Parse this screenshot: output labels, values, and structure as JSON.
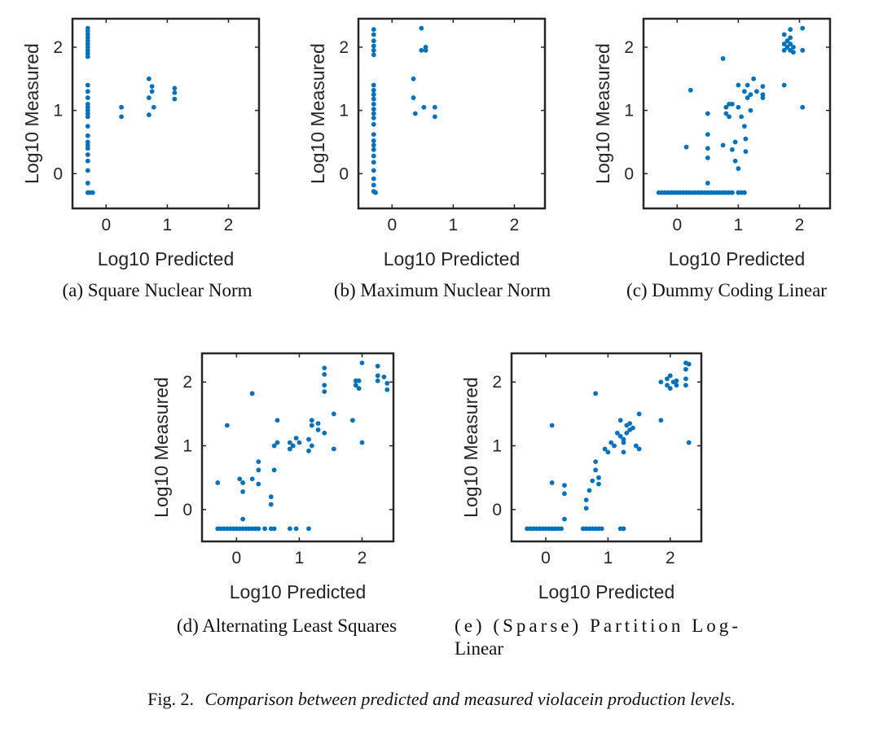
{
  "colors": {
    "marker": "#0072BD",
    "axis": "#262626",
    "text": "#262626"
  },
  "figure_caption": {
    "label": "Fig. 2.",
    "text": "Comparison between predicted and measured violacein production levels."
  },
  "chart_data": [
    {
      "type": "scatter",
      "subcaption": "(a) Square Nuclear Norm",
      "xlabel": "Log10 Predicted",
      "ylabel": "Log10 Measured",
      "xlim": [
        -0.55,
        2.5
      ],
      "ylim": [
        -0.55,
        2.45
      ],
      "xticks": [
        0,
        1,
        2
      ],
      "yticks": [
        0,
        1,
        2
      ],
      "points": [
        [
          -0.3,
          2.3
        ],
        [
          -0.3,
          2.25
        ],
        [
          -0.3,
          2.2
        ],
        [
          -0.3,
          2.15
        ],
        [
          -0.3,
          2.1
        ],
        [
          -0.3,
          2.05
        ],
        [
          -0.3,
          2.0
        ],
        [
          -0.3,
          1.95
        ],
        [
          -0.3,
          1.9
        ],
        [
          -0.3,
          1.85
        ],
        [
          -0.3,
          1.4
        ],
        [
          -0.3,
          1.3
        ],
        [
          -0.3,
          1.2
        ],
        [
          -0.3,
          1.1
        ],
        [
          -0.3,
          1.05
        ],
        [
          -0.3,
          1.0
        ],
        [
          -0.3,
          0.95
        ],
        [
          -0.3,
          0.9
        ],
        [
          -0.3,
          0.75
        ],
        [
          -0.3,
          0.6
        ],
        [
          -0.3,
          0.5
        ],
        [
          -0.3,
          0.45
        ],
        [
          -0.3,
          0.4
        ],
        [
          -0.3,
          0.3
        ],
        [
          -0.3,
          0.2
        ],
        [
          -0.3,
          0.05
        ],
        [
          -0.3,
          -0.15
        ],
        [
          -0.3,
          -0.3
        ],
        [
          -0.27,
          -0.3
        ],
        [
          -0.22,
          -0.3
        ],
        [
          0.25,
          1.05
        ],
        [
          0.25,
          0.9
        ],
        [
          0.7,
          1.5
        ],
        [
          0.7,
          1.2
        ],
        [
          0.7,
          0.93
        ],
        [
          0.75,
          1.38
        ],
        [
          0.75,
          1.3
        ],
        [
          0.78,
          1.05
        ],
        [
          1.12,
          1.35
        ],
        [
          1.12,
          1.28
        ],
        [
          1.12,
          1.18
        ]
      ]
    },
    {
      "type": "scatter",
      "subcaption": "(b) Maximum Nuclear Norm",
      "xlabel": "Log10 Predicted",
      "ylabel": "Log10 Measured",
      "xlim": [
        -0.55,
        2.5
      ],
      "ylim": [
        -0.55,
        2.45
      ],
      "xticks": [
        0,
        1,
        2
      ],
      "yticks": [
        0,
        1,
        2
      ],
      "points": [
        [
          -0.3,
          2.28
        ],
        [
          -0.3,
          2.2
        ],
        [
          -0.3,
          2.1
        ],
        [
          -0.3,
          2.02
        ],
        [
          -0.3,
          1.95
        ],
        [
          -0.3,
          1.88
        ],
        [
          -0.3,
          1.4
        ],
        [
          -0.3,
          1.32
        ],
        [
          -0.3,
          1.25
        ],
        [
          -0.3,
          1.18
        ],
        [
          -0.3,
          1.1
        ],
        [
          -0.3,
          1.02
        ],
        [
          -0.3,
          0.95
        ],
        [
          -0.3,
          0.88
        ],
        [
          -0.3,
          0.78
        ],
        [
          -0.3,
          0.62
        ],
        [
          -0.3,
          0.52
        ],
        [
          -0.3,
          0.45
        ],
        [
          -0.3,
          0.38
        ],
        [
          -0.3,
          0.28
        ],
        [
          -0.3,
          0.18
        ],
        [
          -0.3,
          0.05
        ],
        [
          -0.3,
          -0.08
        ],
        [
          -0.3,
          -0.18
        ],
        [
          -0.3,
          -0.28
        ],
        [
          -0.27,
          -0.3
        ],
        [
          0.35,
          1.5
        ],
        [
          0.35,
          1.2
        ],
        [
          0.38,
          0.95
        ],
        [
          0.48,
          2.3
        ],
        [
          0.48,
          1.95
        ],
        [
          0.52,
          1.05
        ],
        [
          0.55,
          1.95
        ],
        [
          0.55,
          2.0
        ],
        [
          0.7,
          1.05
        ],
        [
          0.7,
          0.9
        ]
      ]
    },
    {
      "type": "scatter",
      "subcaption": "(c) Dummy Coding Linear",
      "xlabel": "Log10 Predicted",
      "ylabel": "Log10 Measured",
      "xlim": [
        -0.55,
        2.5
      ],
      "ylim": [
        -0.55,
        2.45
      ],
      "xticks": [
        0,
        1,
        2
      ],
      "yticks": [
        0,
        1,
        2
      ],
      "points": [
        [
          -0.3,
          -0.3
        ],
        [
          -0.25,
          -0.3
        ],
        [
          -0.2,
          -0.3
        ],
        [
          -0.15,
          -0.3
        ],
        [
          -0.1,
          -0.3
        ],
        [
          -0.05,
          -0.3
        ],
        [
          0.0,
          -0.3
        ],
        [
          0.05,
          -0.3
        ],
        [
          0.1,
          -0.3
        ],
        [
          0.15,
          -0.3
        ],
        [
          0.2,
          -0.3
        ],
        [
          0.25,
          -0.3
        ],
        [
          0.3,
          -0.3
        ],
        [
          0.35,
          -0.3
        ],
        [
          0.4,
          -0.3
        ],
        [
          0.45,
          -0.3
        ],
        [
          0.5,
          -0.3
        ],
        [
          0.55,
          -0.3
        ],
        [
          0.6,
          -0.3
        ],
        [
          0.65,
          -0.3
        ],
        [
          0.7,
          -0.3
        ],
        [
          0.75,
          -0.3
        ],
        [
          0.8,
          -0.3
        ],
        [
          0.85,
          -0.3
        ],
        [
          0.9,
          -0.3
        ],
        [
          1.0,
          -0.3
        ],
        [
          1.05,
          -0.3
        ],
        [
          1.1,
          -0.3
        ],
        [
          0.15,
          0.42
        ],
        [
          0.22,
          1.32
        ],
        [
          0.5,
          0.95
        ],
        [
          0.5,
          0.62
        ],
        [
          0.5,
          0.4
        ],
        [
          0.5,
          0.25
        ],
        [
          0.5,
          -0.15
        ],
        [
          0.75,
          1.82
        ],
        [
          0.75,
          0.45
        ],
        [
          0.8,
          1.05
        ],
        [
          0.8,
          0.95
        ],
        [
          0.85,
          1.1
        ],
        [
          0.85,
          0.9
        ],
        [
          0.9,
          1.1
        ],
        [
          0.9,
          0.38
        ],
        [
          0.95,
          0.5
        ],
        [
          0.95,
          0.2
        ],
        [
          1.0,
          1.4
        ],
        [
          1.0,
          1.05
        ],
        [
          1.0,
          0.08
        ],
        [
          1.05,
          0.9
        ],
        [
          1.1,
          1.3
        ],
        [
          1.1,
          0.75
        ],
        [
          1.12,
          0.55
        ],
        [
          1.12,
          0.35
        ],
        [
          1.15,
          1.4
        ],
        [
          1.15,
          1.2
        ],
        [
          1.2,
          1.0
        ],
        [
          1.2,
          1.25
        ],
        [
          1.25,
          1.5
        ],
        [
          1.3,
          1.3
        ],
        [
          1.4,
          1.38
        ],
        [
          1.4,
          1.25
        ],
        [
          1.4,
          1.2
        ],
        [
          1.75,
          2.2
        ],
        [
          1.75,
          2.05
        ],
        [
          1.75,
          1.95
        ],
        [
          1.75,
          1.4
        ],
        [
          1.8,
          2.1
        ],
        [
          1.8,
          2.0
        ],
        [
          1.85,
          2.28
        ],
        [
          1.85,
          2.15
        ],
        [
          1.85,
          2.05
        ],
        [
          1.85,
          1.95
        ],
        [
          1.9,
          2.0
        ],
        [
          1.9,
          1.92
        ],
        [
          2.05,
          2.3
        ],
        [
          2.05,
          1.95
        ],
        [
          2.05,
          1.05
        ]
      ]
    },
    {
      "type": "scatter",
      "subcaption": "(d) Alternating Least Squares",
      "xlabel": "Log10 Predicted",
      "ylabel": "Log10 Measured",
      "xlim": [
        -0.55,
        2.5
      ],
      "ylim": [
        -0.5,
        2.45
      ],
      "xticks": [
        0,
        1,
        2
      ],
      "yticks": [
        0,
        1,
        2
      ],
      "points": [
        [
          -0.3,
          0.42
        ],
        [
          -0.3,
          -0.3
        ],
        [
          -0.25,
          -0.3
        ],
        [
          -0.2,
          -0.3
        ],
        [
          -0.15,
          -0.3
        ],
        [
          -0.1,
          -0.3
        ],
        [
          -0.05,
          -0.3
        ],
        [
          0.0,
          -0.3
        ],
        [
          0.05,
          -0.3
        ],
        [
          0.1,
          -0.3
        ],
        [
          0.15,
          -0.3
        ],
        [
          0.2,
          -0.3
        ],
        [
          0.25,
          -0.3
        ],
        [
          0.3,
          -0.3
        ],
        [
          0.35,
          -0.3
        ],
        [
          0.45,
          -0.3
        ],
        [
          0.55,
          -0.3
        ],
        [
          0.6,
          -0.3
        ],
        [
          0.85,
          -0.3
        ],
        [
          0.95,
          -0.3
        ],
        [
          1.15,
          -0.3
        ],
        [
          -0.15,
          1.32
        ],
        [
          0.05,
          0.48
        ],
        [
          0.1,
          0.42
        ],
        [
          0.1,
          0.28
        ],
        [
          0.1,
          -0.15
        ],
        [
          0.25,
          1.82
        ],
        [
          0.25,
          0.48
        ],
        [
          0.35,
          0.75
        ],
        [
          0.35,
          0.62
        ],
        [
          0.35,
          0.4
        ],
        [
          0.55,
          0.2
        ],
        [
          0.55,
          0.08
        ],
        [
          0.6,
          0.62
        ],
        [
          0.6,
          1.0
        ],
        [
          0.65,
          1.4
        ],
        [
          0.65,
          1.05
        ],
        [
          0.85,
          1.05
        ],
        [
          0.85,
          0.95
        ],
        [
          0.9,
          1.0
        ],
        [
          0.95,
          1.12
        ],
        [
          1.0,
          1.05
        ],
        [
          1.15,
          1.1
        ],
        [
          1.15,
          0.92
        ],
        [
          1.2,
          1.4
        ],
        [
          1.2,
          1.32
        ],
        [
          1.2,
          1.0
        ],
        [
          1.3,
          1.35
        ],
        [
          1.3,
          1.25
        ],
        [
          1.4,
          2.22
        ],
        [
          1.4,
          2.12
        ],
        [
          1.4,
          1.95
        ],
        [
          1.4,
          1.85
        ],
        [
          1.4,
          1.2
        ],
        [
          1.55,
          1.5
        ],
        [
          1.55,
          0.95
        ],
        [
          1.85,
          1.4
        ],
        [
          1.9,
          2.02
        ],
        [
          1.9,
          1.95
        ],
        [
          1.95,
          1.9
        ],
        [
          1.95,
          2.02
        ],
        [
          2.0,
          2.3
        ],
        [
          2.0,
          1.05
        ],
        [
          2.25,
          2.25
        ],
        [
          2.25,
          2.1
        ],
        [
          2.25,
          2.02
        ],
        [
          2.35,
          2.08
        ],
        [
          2.4,
          1.98
        ],
        [
          2.4,
          1.88
        ]
      ]
    },
    {
      "type": "scatter",
      "subcaption": "(e) (Sparse) Partition Log-Linear",
      "xlabel": "Log10 Predicted",
      "ylabel": "Log10 Measured",
      "xlim": [
        -0.55,
        2.5
      ],
      "ylim": [
        -0.5,
        2.45
      ],
      "xticks": [
        0,
        1,
        2
      ],
      "yticks": [
        0,
        1,
        2
      ],
      "points": [
        [
          -0.3,
          -0.3
        ],
        [
          -0.25,
          -0.3
        ],
        [
          -0.2,
          -0.3
        ],
        [
          -0.15,
          -0.3
        ],
        [
          -0.1,
          -0.3
        ],
        [
          -0.05,
          -0.3
        ],
        [
          0.0,
          -0.3
        ],
        [
          0.05,
          -0.3
        ],
        [
          0.1,
          -0.3
        ],
        [
          0.15,
          -0.3
        ],
        [
          0.2,
          -0.3
        ],
        [
          0.25,
          -0.3
        ],
        [
          0.6,
          -0.3
        ],
        [
          0.65,
          -0.3
        ],
        [
          0.7,
          -0.3
        ],
        [
          0.75,
          -0.3
        ],
        [
          0.8,
          -0.3
        ],
        [
          0.85,
          -0.3
        ],
        [
          0.9,
          -0.3
        ],
        [
          1.2,
          -0.3
        ],
        [
          1.25,
          -0.3
        ],
        [
          0.1,
          1.32
        ],
        [
          0.1,
          0.42
        ],
        [
          0.3,
          0.38
        ],
        [
          0.3,
          0.25
        ],
        [
          0.3,
          -0.15
        ],
        [
          0.65,
          0.15
        ],
        [
          0.65,
          0.02
        ],
        [
          0.7,
          0.3
        ],
        [
          0.75,
          0.45
        ],
        [
          0.8,
          0.62
        ],
        [
          0.8,
          0.75
        ],
        [
          0.8,
          1.82
        ],
        [
          0.85,
          0.4
        ],
        [
          0.85,
          0.5
        ],
        [
          0.95,
          0.95
        ],
        [
          1.0,
          0.9
        ],
        [
          1.05,
          1.05
        ],
        [
          1.1,
          1.0
        ],
        [
          1.15,
          1.2
        ],
        [
          1.2,
          1.4
        ],
        [
          1.2,
          1.15
        ],
        [
          1.25,
          1.05
        ],
        [
          1.25,
          1.1
        ],
        [
          1.25,
          0.9
        ],
        [
          1.3,
          1.32
        ],
        [
          1.3,
          1.2
        ],
        [
          1.35,
          1.25
        ],
        [
          1.35,
          1.35
        ],
        [
          1.4,
          1.28
        ],
        [
          1.45,
          1.0
        ],
        [
          1.5,
          1.5
        ],
        [
          1.5,
          0.95
        ],
        [
          1.85,
          2.0
        ],
        [
          1.85,
          1.4
        ],
        [
          1.95,
          1.95
        ],
        [
          1.95,
          2.05
        ],
        [
          2.0,
          1.9
        ],
        [
          2.0,
          2.1
        ],
        [
          2.05,
          2.0
        ],
        [
          2.1,
          2.02
        ],
        [
          2.1,
          1.95
        ],
        [
          2.25,
          2.3
        ],
        [
          2.25,
          2.2
        ],
        [
          2.25,
          2.05
        ],
        [
          2.25,
          1.95
        ],
        [
          2.3,
          2.28
        ],
        [
          2.3,
          1.05
        ]
      ]
    }
  ]
}
